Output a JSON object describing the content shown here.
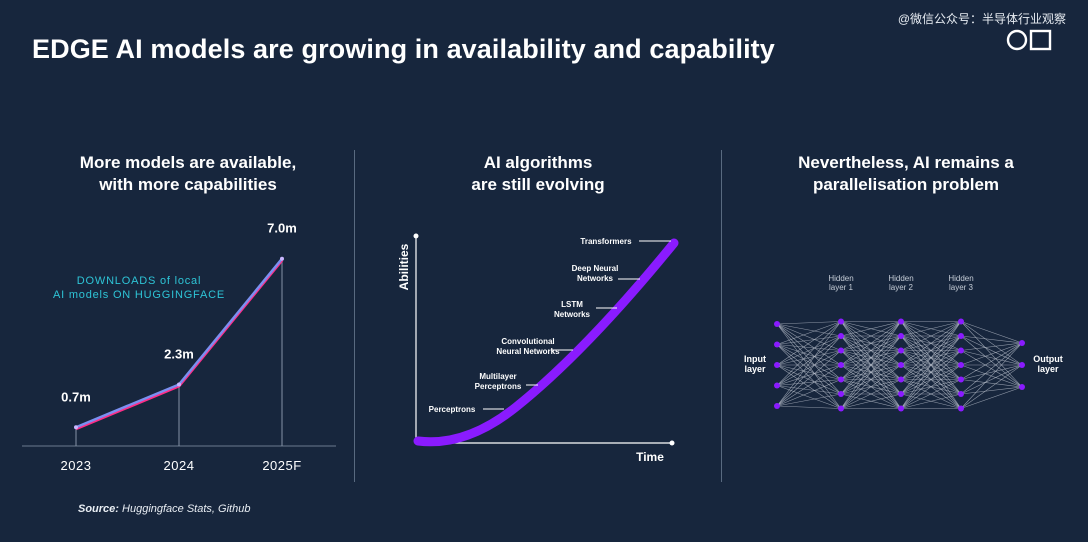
{
  "title": "EDGE AI models are growing in availability and capability",
  "watermark": "@微信公众号：半导体行业观察",
  "panels": [
    {
      "heading_line1": "More models are available,",
      "heading_line2": "with more capabilities"
    },
    {
      "heading_line1": "AI algorithms",
      "heading_line2": "are still evolving"
    },
    {
      "heading_line1": "Nevertheless, AI remains a",
      "heading_line2": "parallelisation problem"
    }
  ],
  "downloads": {
    "label_line1": "DOWNLOADS of local",
    "label_line2": "AI models ON HUGGINGFACE",
    "chart_data": {
      "type": "line",
      "categories": [
        "2023",
        "2024",
        "2025F"
      ],
      "values": [
        0.7,
        2.3,
        7.0
      ],
      "value_labels": [
        "0.7m",
        "2.3m",
        "7.0m"
      ],
      "ylim": [
        0,
        7.7
      ]
    },
    "colors": {
      "line_top": "#7b8ff0",
      "line_bottom": "#ff2d87",
      "label": "#2ec4d6"
    }
  },
  "source": {
    "bold": "Source:",
    "text": " Huggingface Stats, Github"
  },
  "evolution": {
    "y_axis_label": "Abilities",
    "x_axis_label": "Time",
    "curve_color": "#8a1bff",
    "milestones": [
      {
        "line1": "Perceptrons",
        "line2": ""
      },
      {
        "line1": "Multilayer",
        "line2": "Perceptrons"
      },
      {
        "line1": "Convolutional",
        "line2": "Neural Networks"
      },
      {
        "line1": "LSTM",
        "line2": "Networks"
      },
      {
        "line1": "Deep Neural",
        "line2": "Networks"
      },
      {
        "line1": "Transformers",
        "line2": ""
      }
    ]
  },
  "network": {
    "input_label_line1": "Input",
    "input_label_line2": "layer",
    "output_label_line1": "Output",
    "output_label_line2": "layer",
    "hidden_labels": [
      {
        "line1": "Hidden",
        "line2": "layer 1"
      },
      {
        "line1": "Hidden",
        "line2": "layer 2"
      },
      {
        "line1": "Hidden",
        "line2": "layer 3"
      }
    ],
    "layer_sizes": [
      5,
      7,
      7,
      7,
      3
    ],
    "node_color": "#8a1bff",
    "edge_color": "#b9c0cc"
  }
}
